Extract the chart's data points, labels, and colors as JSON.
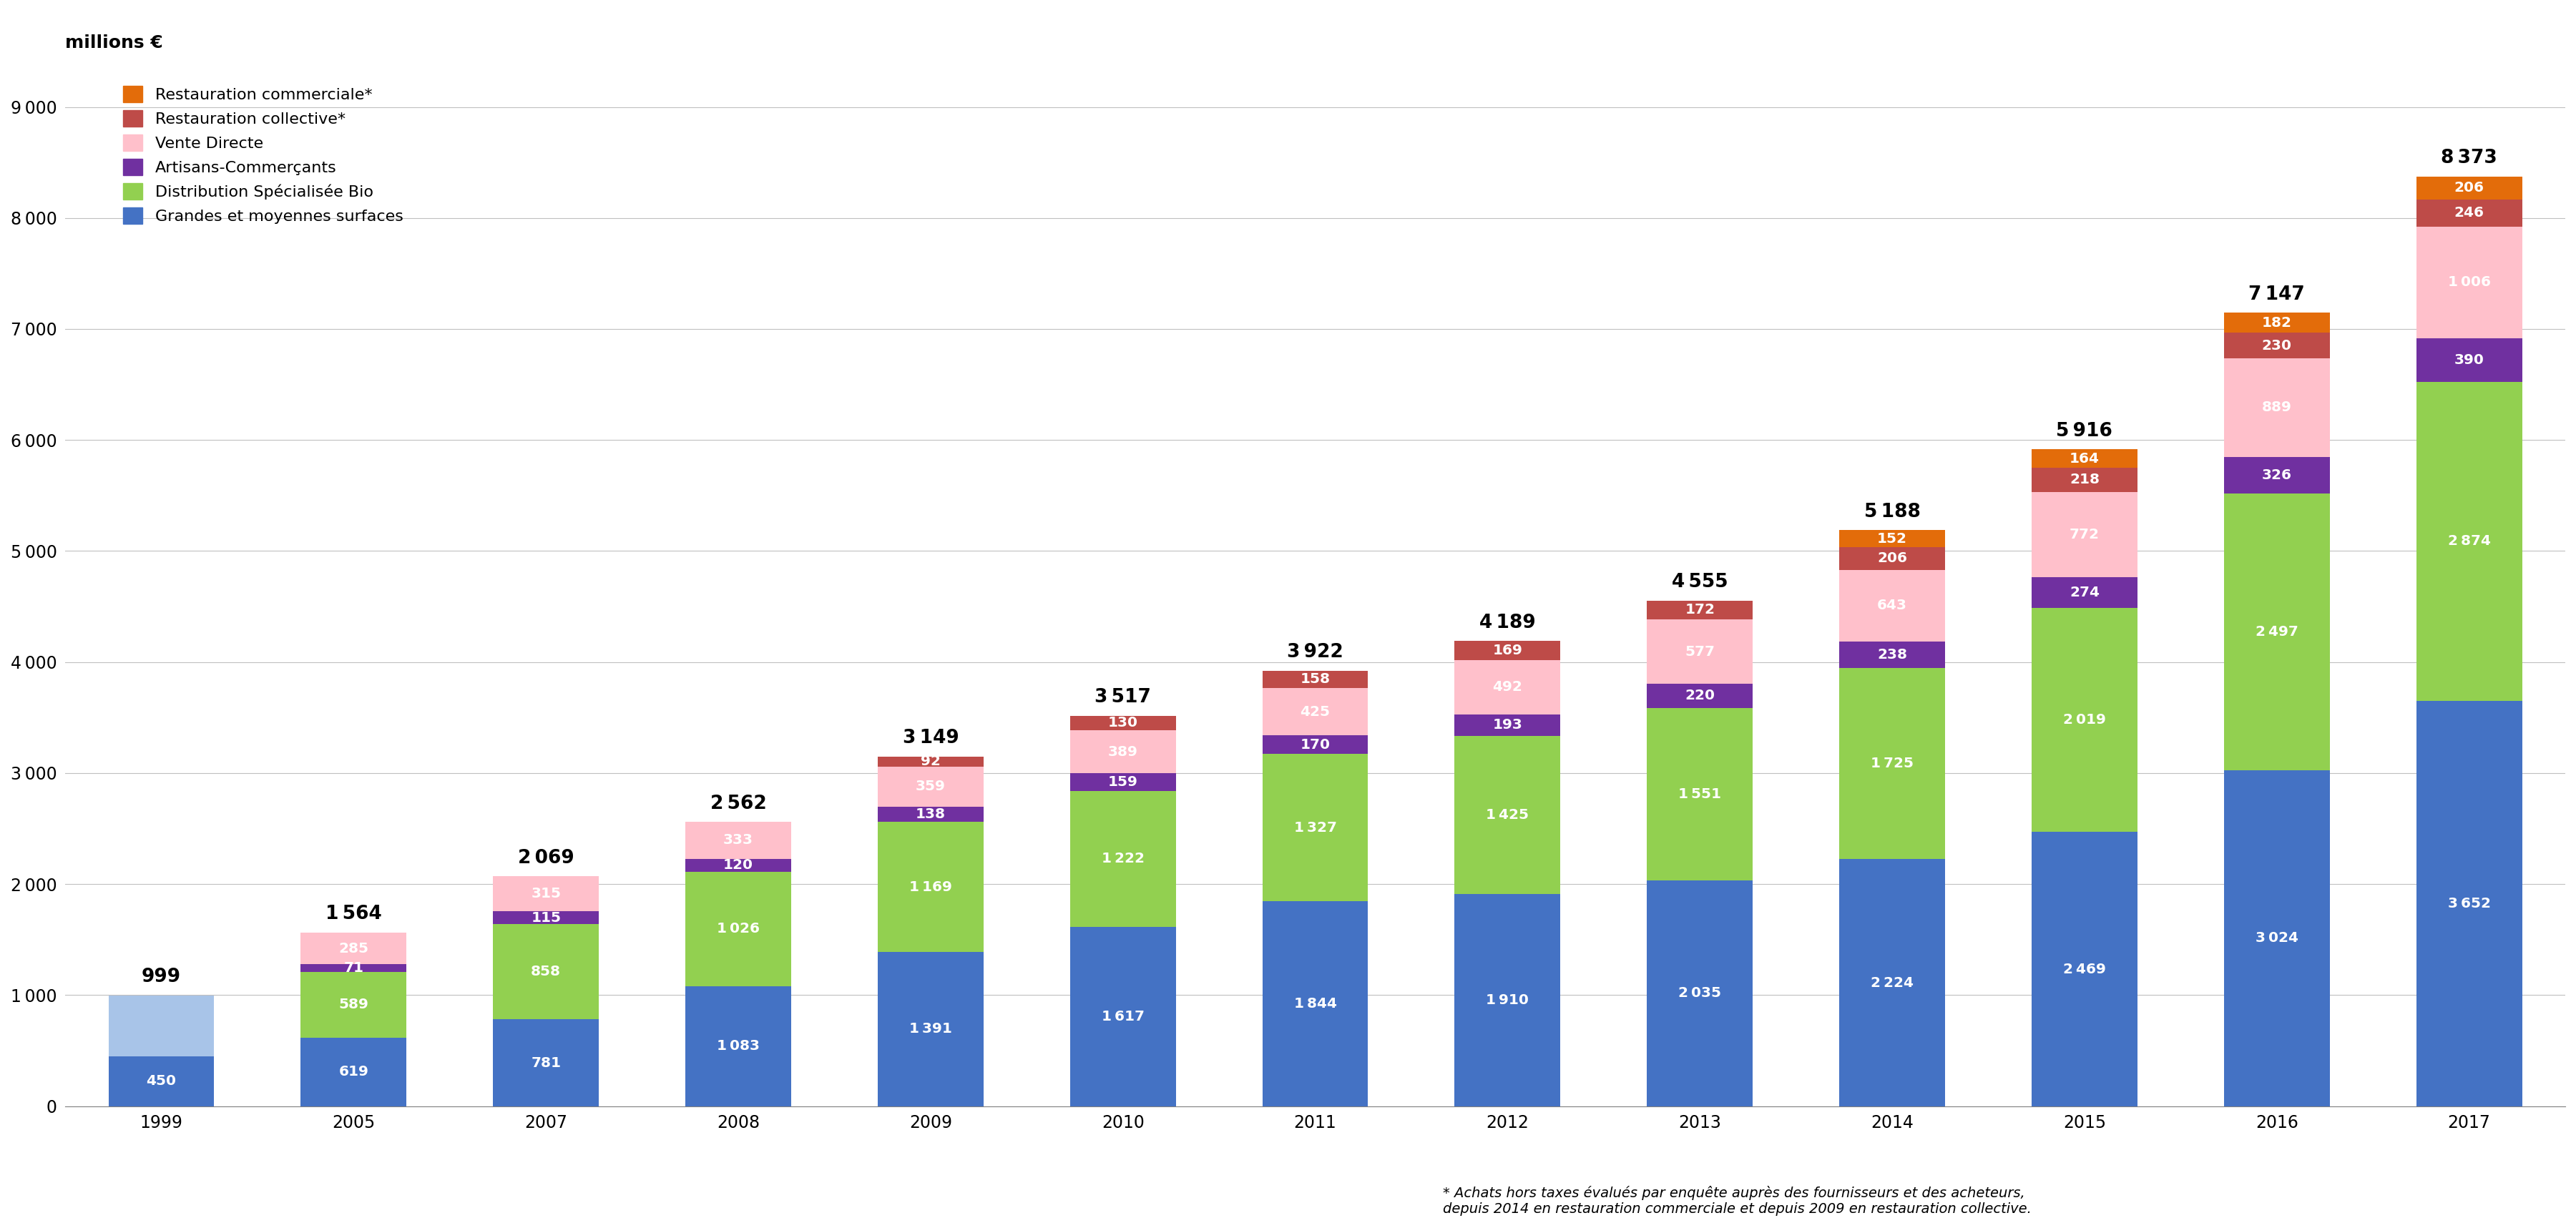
{
  "years": [
    "1999",
    "2005",
    "2007",
    "2008",
    "2009",
    "2010",
    "2011",
    "2012",
    "2013",
    "2014",
    "2015",
    "2016",
    "2017"
  ],
  "totals": [
    999,
    1564,
    2069,
    2562,
    3149,
    3517,
    3922,
    4189,
    4555,
    5188,
    5916,
    7147,
    8373
  ],
  "gms": [
    450,
    619,
    781,
    1083,
    1391,
    1617,
    1844,
    1910,
    2035,
    2224,
    2469,
    3024,
    3652
  ],
  "dsb": [
    549,
    589,
    858,
    1026,
    1169,
    1222,
    1327,
    1425,
    1551,
    1725,
    2019,
    2497,
    2874
  ],
  "artisans": [
    0,
    71,
    115,
    120,
    138,
    159,
    170,
    193,
    220,
    238,
    274,
    326,
    390
  ],
  "vente_directe": [
    0,
    285,
    315,
    333,
    359,
    389,
    425,
    492,
    577,
    643,
    772,
    889,
    1006
  ],
  "rest_collective": [
    0,
    0,
    0,
    0,
    92,
    130,
    158,
    169,
    172,
    206,
    218,
    230,
    246
  ],
  "rest_commerciale": [
    0,
    0,
    0,
    0,
    0,
    0,
    0,
    0,
    0,
    152,
    164,
    182,
    206
  ],
  "colors": {
    "gms": "#4472C4",
    "gms_light": "#A8C4E8",
    "dsb": "#92D050",
    "artisans": "#7030A0",
    "vente_directe": "#FFC0CB",
    "rest_collective": "#BE4B48",
    "rest_commerciale": "#E36C0A"
  },
  "gms_label": "Grandes et moyennes surfaces",
  "dsb_label": "Distribution Spécialisée Bio",
  "artisans_label": "Artisans-Commerçants",
  "vd_label": "Vente Directe",
  "rc_label": "Restauration collective*",
  "rcom_label": "Restauration commerciale*",
  "ylabel": "millions €",
  "ylim": [
    0,
    9000
  ],
  "yticks": [
    0,
    1000,
    2000,
    3000,
    4000,
    5000,
    6000,
    7000,
    8000,
    9000
  ],
  "footnote": "* Achats hors taxes évalués par enquête auprès des fournisseurs et des acheteurs,\ndepuis 2014 en restauration commerciale et depuis 2009 en restauration collective."
}
